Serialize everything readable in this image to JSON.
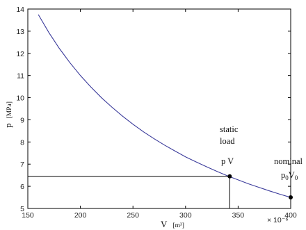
{
  "chart_data": {
    "type": "line",
    "xlabel": "V",
    "xunit": "[m³]",
    "ylabel": "p",
    "yunit": "[MPa]",
    "x_multiplier": "× 10⁻⁶",
    "xlim": [
      150,
      400
    ],
    "ylim": [
      5,
      14
    ],
    "xticks": [
      150,
      200,
      250,
      300,
      350,
      400
    ],
    "yticks": [
      5,
      6,
      7,
      8,
      9,
      10,
      11,
      12,
      13,
      14
    ],
    "grid": false,
    "colors": {
      "curve": "#3a3a9a",
      "axes": "#000000",
      "marker": "#000000"
    },
    "series": [
      {
        "x": [
          160,
          170,
          180,
          190,
          200,
          210,
          220,
          230,
          240,
          250,
          260,
          270,
          280,
          290,
          300,
          310,
          320,
          330,
          340,
          350,
          360,
          370,
          380,
          390,
          400
        ],
        "values": [
          13.75,
          12.94,
          12.22,
          11.58,
          11.0,
          10.48,
          10.0,
          9.57,
          9.17,
          8.8,
          8.46,
          8.15,
          7.86,
          7.59,
          7.33,
          7.1,
          6.88,
          6.67,
          6.47,
          6.29,
          6.11,
          5.95,
          5.79,
          5.64,
          5.5
        ]
      }
    ],
    "points": [
      {
        "x": 342,
        "y": 6.45,
        "guide_lines": true
      },
      {
        "x": 400,
        "y": 5.5,
        "guide_lines": false
      }
    ],
    "annotations": {
      "static": {
        "line1": "static",
        "line2": "load",
        "label_main": "p",
        "label_rest": " V"
      },
      "nominal": {
        "line1": "nominal",
        "p": "p",
        "sub0a": "0",
        "v": "V",
        "sub0b": "0"
      }
    }
  }
}
